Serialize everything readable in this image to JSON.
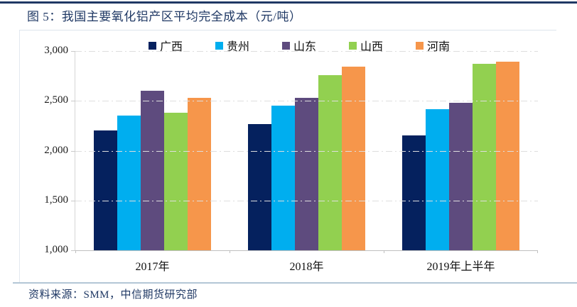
{
  "header": {
    "title": "图 5：我国主要氧化铝产区平均完全成本（元/吨）"
  },
  "footer": {
    "source": "资料来源：SMM，中信期货研究部"
  },
  "colors": {
    "title_text": "#1F3864",
    "top_rule": "#1F3864",
    "source_text": "#1F3864",
    "bottom_divider": "#B3C6D5",
    "gridline": "#DEDEDE",
    "axis": "#BFBFBF"
  },
  "chart_data": {
    "type": "bar",
    "title": "我国主要氧化铝产区平均完全成本（元/吨）",
    "categories": [
      "2017年",
      "2018年",
      "2019年上半年"
    ],
    "category_keys": [
      "2017",
      "2018",
      "2019h1"
    ],
    "series": [
      {
        "name": "广西",
        "key": "guangxi",
        "color": "#05215E",
        "values": [
          2200,
          2270,
          2150
        ]
      },
      {
        "name": "贵州",
        "key": "guizhou",
        "color": "#00AEEF",
        "values": [
          2350,
          2450,
          2420
        ]
      },
      {
        "name": "山东",
        "key": "shandong",
        "color": "#5E4B7E",
        "values": [
          2600,
          2530,
          2480
        ]
      },
      {
        "name": "山西",
        "key": "shanxi",
        "color": "#92D050",
        "values": [
          2380,
          2760,
          2870
        ]
      },
      {
        "name": "河南",
        "key": "henan",
        "color": "#F6964B",
        "values": [
          2530,
          2840,
          2890
        ]
      }
    ],
    "xlabel": "",
    "ylabel": "",
    "ylim": [
      1000,
      3000
    ],
    "yticks": [
      3000,
      2500,
      2000,
      1500,
      1000
    ],
    "ytick_labels": [
      "3,000",
      "2,500",
      "2,000",
      "1,500",
      "1,000"
    ],
    "grid": "horizontal-dash-dot",
    "legend_position": "top"
  }
}
